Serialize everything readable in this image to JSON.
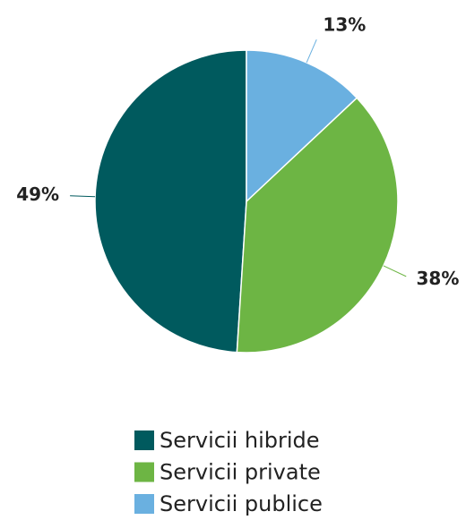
{
  "chart_data": {
    "type": "pie",
    "categories": [
      "Servicii hibride",
      "Servicii private",
      "Servicii publice"
    ],
    "values": [
      49,
      38,
      13
    ],
    "value_labels": [
      "49%",
      "38%",
      "13%"
    ],
    "colors": [
      "#005a5e",
      "#6db544",
      "#6ab0e0"
    ],
    "legend": "bottom"
  }
}
